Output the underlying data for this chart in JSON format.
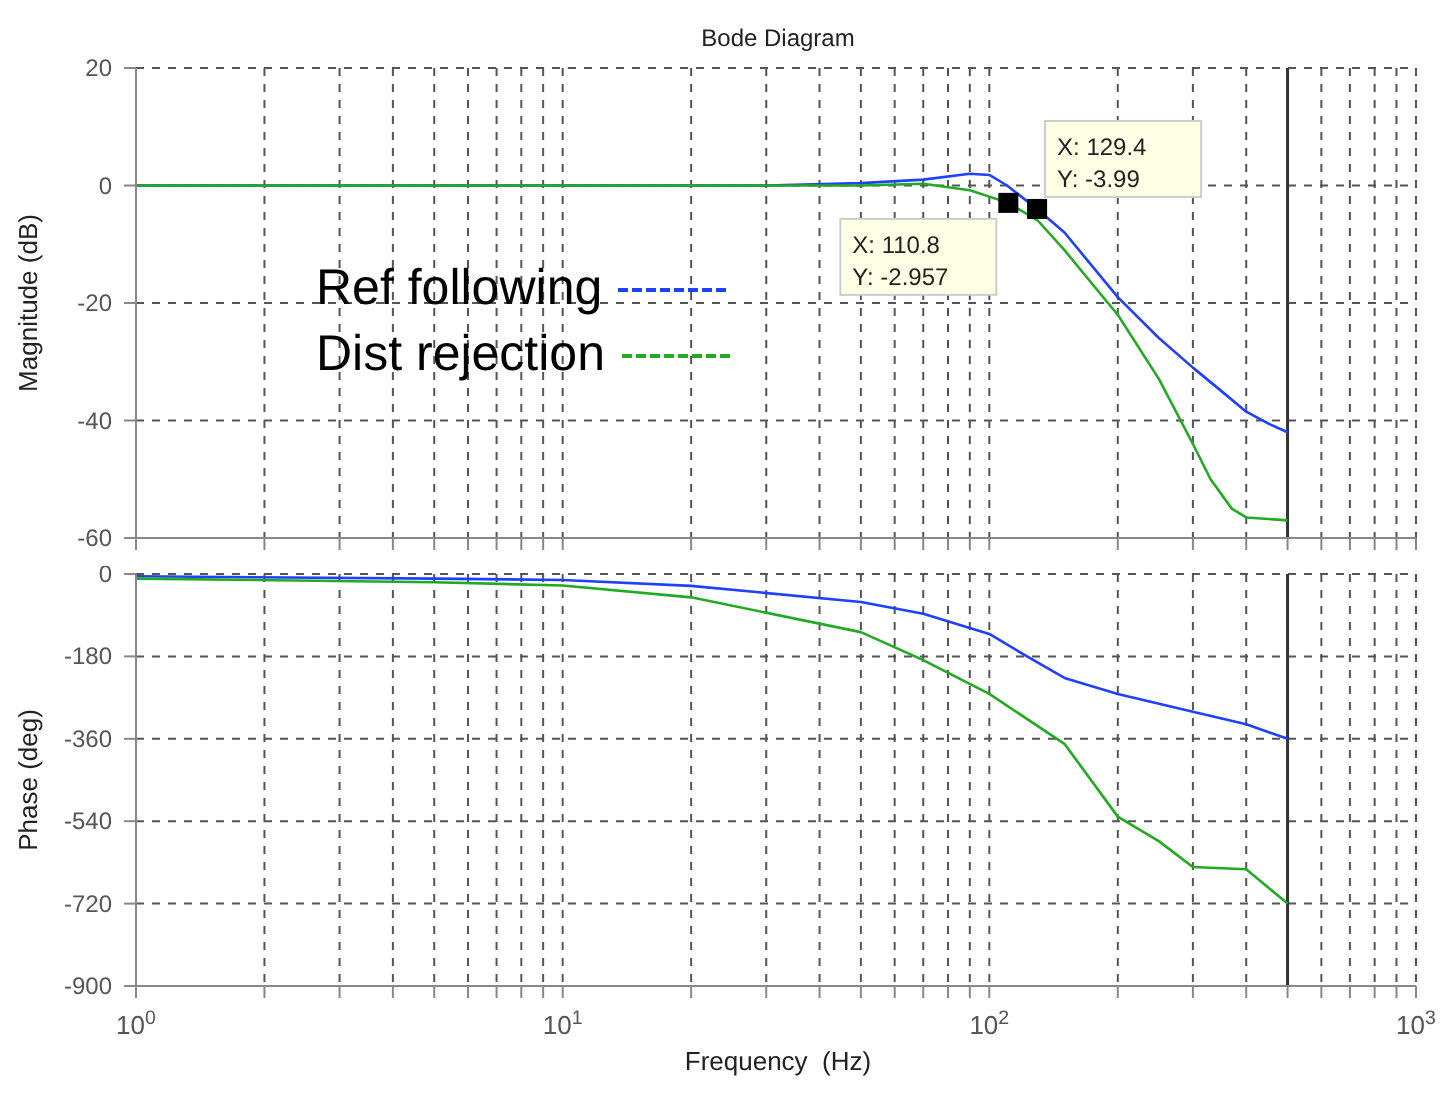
{
  "chart_data": [
    {
      "type": "line",
      "title": "Bode Diagram",
      "ylabel": "Magnitude (dB)",
      "log": "x",
      "grid": true,
      "legend": "left",
      "tick_labels": "y",
      "xlim": [
        1,
        1000
      ],
      "ylim": [
        -60,
        20
      ],
      "yticks": [
        -60,
        -40,
        -20,
        0,
        20
      ],
      "xticks": [
        {
          "value": 1,
          "label": null
        },
        {
          "value": 2,
          "label": null
        },
        {
          "value": 3,
          "label": null
        },
        {
          "value": 4,
          "label": null
        },
        {
          "value": 5,
          "label": null
        },
        {
          "value": 6,
          "label": null
        },
        {
          "value": 7,
          "label": null
        },
        {
          "value": 8,
          "label": null
        },
        {
          "value": 9,
          "label": null
        },
        {
          "value": 10,
          "label": null
        },
        {
          "value": 20,
          "label": null
        },
        {
          "value": 30,
          "label": null
        },
        {
          "value": 40,
          "label": null
        },
        {
          "value": 50,
          "label": null
        },
        {
          "value": 60,
          "label": null
        },
        {
          "value": 70,
          "label": null
        },
        {
          "value": 80,
          "label": null
        },
        {
          "value": 90,
          "label": null
        },
        {
          "value": 100,
          "label": null
        },
        {
          "value": 200,
          "label": null
        },
        {
          "value": 300,
          "label": null
        },
        {
          "value": 400,
          "label": null
        },
        {
          "value": 500,
          "label": null
        },
        {
          "value": 600,
          "label": null
        },
        {
          "value": 700,
          "label": null
        },
        {
          "value": 800,
          "label": null
        },
        {
          "value": 900,
          "label": null
        },
        {
          "value": 1000,
          "label": null
        }
      ],
      "series": [
        {
          "name": "Ref following",
          "color": "#2040ff",
          "x": [
            1,
            30,
            50,
            70,
            90,
            100,
            110,
            129.4,
            150,
            200,
            250,
            300,
            350,
            400,
            450,
            500
          ],
          "values": [
            0,
            0,
            0.4,
            1,
            2,
            1.8,
            0,
            -3.99,
            -8,
            -19,
            -26,
            -31,
            -35,
            -38.5,
            -40.5,
            -42
          ]
        },
        {
          "name": "Dist rejection",
          "color": "#22aa22",
          "x": [
            1,
            50,
            70,
            90,
            110.8,
            130,
            150,
            180,
            200,
            250,
            300,
            330,
            370,
            400,
            500
          ],
          "values": [
            0,
            0,
            0.3,
            -0.8,
            -2.957,
            -6,
            -11,
            -18,
            -22,
            -33,
            -44,
            -50,
            -55,
            -56.5,
            -57
          ]
        }
      ],
      "ref_lines": [
        {
          "axis": "x",
          "value": 500,
          "color": "#333333"
        }
      ],
      "annotations": [
        {
          "text": "X: 110.8\nY: -2.957",
          "x": 110.8,
          "y": -2.957
        },
        {
          "text": "X: 129.4\nY: -3.99",
          "x": 129.4,
          "y": -3.99
        }
      ]
    },
    {
      "type": "line",
      "xlabel": "Frequency  (Hz)",
      "ylabel": "Phase (deg)",
      "log": "x",
      "grid": true,
      "xlim": [
        1,
        1000
      ],
      "ylim": [
        -900,
        0
      ],
      "yticks": [
        -900,
        -720,
        -540,
        -360,
        -180,
        0
      ],
      "xticks": [
        {
          "value": 1,
          "label": "10$^{0}$"
        },
        {
          "value": 2,
          "label": null
        },
        {
          "value": 3,
          "label": null
        },
        {
          "value": 4,
          "label": null
        },
        {
          "value": 5,
          "label": null
        },
        {
          "value": 6,
          "label": null
        },
        {
          "value": 7,
          "label": null
        },
        {
          "value": 8,
          "label": null
        },
        {
          "value": 9,
          "label": null
        },
        {
          "value": 10,
          "label": "10$^{1}$"
        },
        {
          "value": 20,
          "label": null
        },
        {
          "value": 30,
          "label": null
        },
        {
          "value": 40,
          "label": null
        },
        {
          "value": 50,
          "label": null
        },
        {
          "value": 60,
          "label": null
        },
        {
          "value": 70,
          "label": null
        },
        {
          "value": 80,
          "label": null
        },
        {
          "value": 90,
          "label": null
        },
        {
          "value": 100,
          "label": "10$^{2}$"
        },
        {
          "value": 200,
          "label": null
        },
        {
          "value": 300,
          "label": null
        },
        {
          "value": 400,
          "label": null
        },
        {
          "value": 500,
          "label": null
        },
        {
          "value": 600,
          "label": null
        },
        {
          "value": 700,
          "label": null
        },
        {
          "value": 800,
          "label": null
        },
        {
          "value": 900,
          "label": null
        },
        {
          "value": 1000,
          "label": "10$^{3}$"
        }
      ],
      "series": [
        {
          "color": "#2040ff",
          "x": [
            1,
            5,
            10,
            20,
            50,
            70,
            100,
            120,
            150,
            200,
            300,
            400,
            500
          ],
          "values": [
            -5,
            -10,
            -13,
            -26,
            -61,
            -87,
            -131,
            -175,
            -227,
            -262,
            -301,
            -328,
            -360
          ]
        },
        {
          "color": "#22aa22",
          "x": [
            1,
            5,
            10,
            20,
            50,
            70,
            100,
            150,
            200,
            250,
            300,
            400,
            500
          ],
          "values": [
            -10,
            -18,
            -25,
            -51,
            -127,
            -188,
            -262,
            -371,
            -530,
            -584,
            -640,
            -645,
            -720
          ]
        }
      ],
      "ref_lines": [
        {
          "axis": "x",
          "value": 500,
          "color": "#333333"
        }
      ]
    }
  ]
}
